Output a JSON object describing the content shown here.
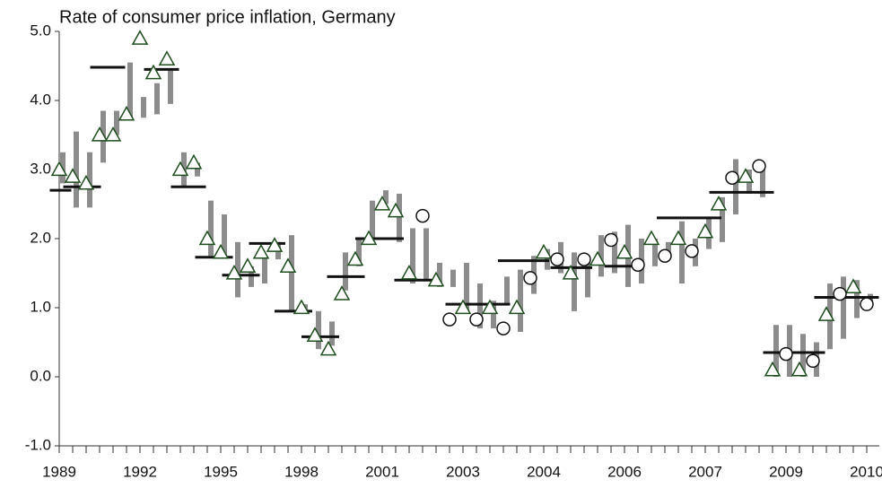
{
  "chart_data": {
    "type": "combo",
    "title": "Rate of consumer price inflation, Germany",
    "categories": [
      "1989",
      null,
      null,
      null,
      null,
      null,
      "1992",
      null,
      null,
      null,
      null,
      null,
      "1995",
      null,
      null,
      null,
      null,
      null,
      "1998",
      null,
      null,
      null,
      null,
      null,
      "2001",
      null,
      null,
      null,
      null,
      null,
      "2003",
      null,
      null,
      null,
      null,
      null,
      "2004",
      null,
      null,
      null,
      null,
      null,
      "2006",
      null,
      null,
      null,
      null,
      null,
      "2007",
      null,
      null,
      null,
      null,
      null,
      "2009",
      null,
      null,
      null,
      null,
      null,
      "2010"
    ],
    "ylim": [
      -1,
      5
    ],
    "yticks": [
      {
        "value": -1,
        "label": "-1.0"
      },
      {
        "value": 0,
        "label": "0.0"
      },
      {
        "value": 1,
        "label": "1.0"
      },
      {
        "value": 2,
        "label": "2.0"
      },
      {
        "value": 3,
        "label": "3.0"
      },
      {
        "value": 4,
        "label": "4.0"
      },
      {
        "value": 5,
        "label": "5.0"
      }
    ],
    "series": [
      {
        "type": "range",
        "color": "#8c8c8c",
        "low": [
          2.8,
          2.45,
          2.45,
          3.1,
          3.5,
          3.75,
          3.75,
          3.8,
          3.95,
          2.75,
          2.9,
          1.75,
          1.75,
          1.15,
          1.3,
          1.35,
          1.7,
          0.95,
          0.95,
          0.4,
          0.45,
          1.25,
          1.6,
          2.0,
          2.5,
          1.95,
          1.35,
          1.4,
          1.3,
          1.3,
          0.95,
          0.7,
          0.7,
          1.05,
          0.65,
          1.2,
          1.55,
          1.5,
          0.95,
          1.15,
          1.45,
          1.5,
          1.3,
          1.35,
          1.6,
          1.7,
          1.35,
          1.6,
          1.85,
          1.95,
          2.35,
          2.65,
          2.6,
          0,
          0,
          0,
          0,
          0.4,
          0.55,
          0.85,
          1.0
        ],
        "high": [
          3.25,
          3.55,
          3.25,
          3.85,
          3.85,
          4.55,
          4.05,
          4.25,
          4.45,
          3.25,
          3.1,
          2.55,
          2.35,
          1.95,
          1.6,
          1.75,
          1.95,
          2.05,
          1.05,
          0.95,
          0.8,
          1.8,
          2.0,
          2.55,
          2.7,
          2.65,
          2.15,
          2.15,
          1.65,
          1.55,
          1.65,
          1.35,
          1.1,
          1.45,
          1.55,
          1.75,
          1.85,
          1.95,
          1.8,
          1.75,
          2.05,
          2.1,
          2.2,
          2.0,
          2.0,
          1.95,
          2.25,
          2.0,
          2.3,
          2.6,
          3.15,
          3.0,
          3.0,
          0.75,
          0.75,
          0.62,
          0.5,
          1.35,
          1.45,
          1.4,
          1.2
        ]
      },
      {
        "type": "segment",
        "color": "#111111",
        "segments": [
          {
            "x": [
              -0.7,
              0.9
            ],
            "value": 2.7
          },
          {
            "x": [
              0.3,
              3.1
            ],
            "value": 2.75
          },
          {
            "x": [
              2.3,
              4.9
            ],
            "value": 4.48
          },
          {
            "x": [
              6.3,
              8.9
            ],
            "value": 4.45
          },
          {
            "x": [
              8.3,
              10.9
            ],
            "value": 2.75
          },
          {
            "x": [
              10.1,
              12.9
            ],
            "value": 1.73
          },
          {
            "x": [
              12.1,
              14.9
            ],
            "value": 1.47
          },
          {
            "x": [
              14.1,
              16.8
            ],
            "value": 1.93
          },
          {
            "x": [
              16,
              18.8
            ],
            "value": 0.95
          },
          {
            "x": [
              18,
              20.8
            ],
            "value": 0.58
          },
          {
            "x": [
              19.9,
              22.7
            ],
            "value": 1.45
          },
          {
            "x": [
              22,
              25.6
            ],
            "value": 2.0
          },
          {
            "x": [
              24.9,
              27.7
            ],
            "value": 1.4
          },
          {
            "x": [
              28.7,
              33.5
            ],
            "value": 1.05
          },
          {
            "x": [
              32.6,
              36.4
            ],
            "value": 1.68
          },
          {
            "x": [
              36.5,
              39.6
            ],
            "value": 1.58
          },
          {
            "x": [
              40.5,
              43.3
            ],
            "value": 1.6
          },
          {
            "x": [
              44.4,
              49.2
            ],
            "value": 2.3
          },
          {
            "x": [
              48.3,
              53.1
            ],
            "value": 2.67
          },
          {
            "x": [
              52.3,
              56.9
            ],
            "value": 0.35
          },
          {
            "x": [
              56.1,
              60.9
            ],
            "value": 1.15
          }
        ]
      },
      {
        "type": "triangle",
        "color": "#1f4d1f",
        "values": [
          3.0,
          2.9,
          2.8,
          3.5,
          3.5,
          3.8,
          4.9,
          4.4,
          4.6,
          3.0,
          3.1,
          2.0,
          1.8,
          1.5,
          1.6,
          1.8,
          1.9,
          1.6,
          1.0,
          0.6,
          0.4,
          1.2,
          1.7,
          2.0,
          2.5,
          2.4,
          1.5,
          null,
          1.4,
          null,
          1.0,
          null,
          1.0,
          null,
          1.0,
          null,
          1.8,
          null,
          1.5,
          null,
          1.7,
          null,
          1.8,
          null,
          2.0,
          null,
          2.0,
          null,
          2.1,
          2.5,
          null,
          2.9,
          null,
          0.1,
          null,
          0.1,
          null,
          0.9,
          null,
          1.3,
          null
        ]
      },
      {
        "type": "circle",
        "color": "#111111",
        "values": [
          null,
          null,
          null,
          null,
          null,
          null,
          null,
          null,
          null,
          null,
          null,
          null,
          null,
          null,
          null,
          null,
          null,
          null,
          null,
          null,
          null,
          null,
          null,
          null,
          null,
          null,
          null,
          2.33,
          null,
          0.83,
          null,
          0.83,
          null,
          0.7,
          null,
          1.43,
          null,
          1.7,
          null,
          1.7,
          null,
          1.98,
          null,
          1.62,
          null,
          1.75,
          null,
          1.82,
          null,
          null,
          2.88,
          null,
          3.05,
          null,
          0.33,
          null,
          0.23,
          null,
          1.2,
          null,
          1.05
        ]
      }
    ]
  }
}
